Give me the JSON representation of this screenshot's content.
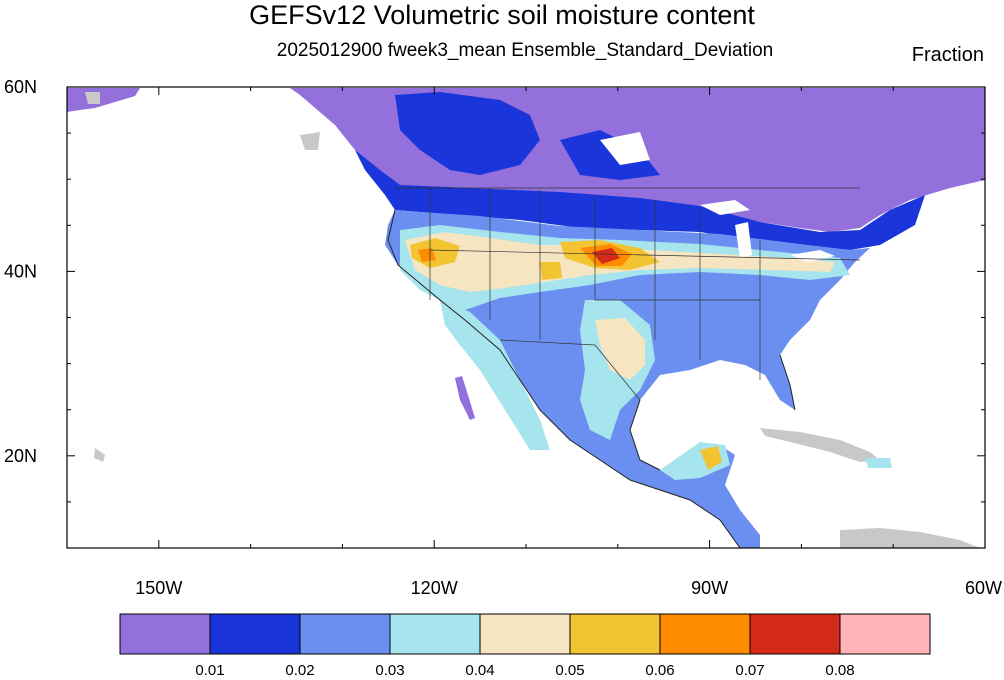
{
  "title": "GEFSv12 Volumetric soil moisture content",
  "subtitle": "2025012900 fweek3_mean Ensemble_Standard_Deviation",
  "units": "Fraction",
  "map": {
    "lon_range": [
      -160,
      -60
    ],
    "lat_range": [
      10,
      60
    ],
    "lat_labels": [
      {
        "value": 60,
        "text": "60N"
      },
      {
        "value": 40,
        "text": "40N"
      },
      {
        "value": 20,
        "text": "20N"
      }
    ],
    "lon_labels": [
      {
        "value": -150,
        "text": "150W"
      },
      {
        "value": -120,
        "text": "120W"
      },
      {
        "value": -90,
        "text": "90W"
      },
      {
        "value": -60,
        "text": "60W"
      }
    ]
  },
  "colorbar": {
    "colors": [
      "#9370db",
      "#1a35d9",
      "#6b8ff0",
      "#a6e4ee",
      "#f5e5c0",
      "#f2c431",
      "#ff8c00",
      "#d42a1a",
      "#ffb3b8"
    ],
    "labels": [
      "0.01",
      "0.02",
      "0.03",
      "0.04",
      "0.05",
      "0.06",
      "0.07",
      "0.08"
    ]
  }
}
